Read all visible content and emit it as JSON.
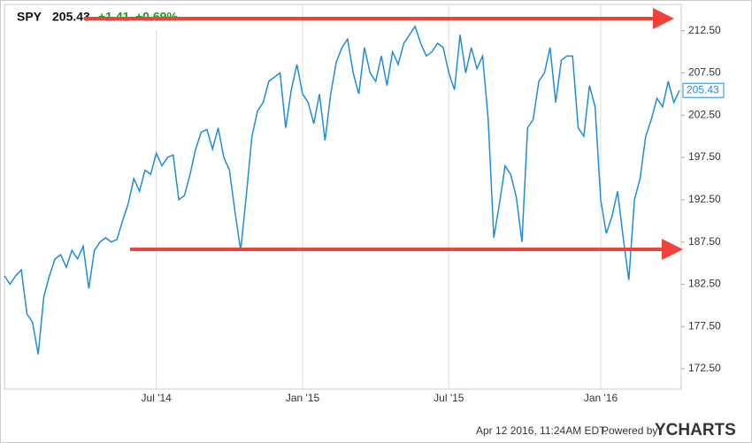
{
  "chart_data": {
    "type": "line",
    "ticker": "SPY",
    "change": "+1.41",
    "change_percent": "+0.69%",
    "timestamp": "Apr 12 2016, 11:24AM EDT.",
    "powered_by": "Powered by",
    "brand": "YCHARTS",
    "categories": [
      null,
      null,
      null,
      null,
      null,
      null,
      null,
      null,
      null,
      null,
      null,
      null,
      null,
      null,
      null,
      null,
      null,
      null,
      null,
      null,
      null,
      null,
      null,
      null,
      null,
      null,
      null,
      "Jul '14",
      null,
      null,
      null,
      null,
      null,
      null,
      null,
      null,
      null,
      null,
      null,
      null,
      null,
      null,
      null,
      null,
      null,
      null,
      null,
      null,
      null,
      null,
      null,
      null,
      null,
      "Jan '15",
      null,
      null,
      null,
      null,
      null,
      null,
      null,
      null,
      null,
      null,
      null,
      null,
      null,
      null,
      null,
      null,
      null,
      null,
      null,
      null,
      null,
      null,
      null,
      null,
      null,
      "Jul '15",
      null,
      null,
      null,
      null,
      null,
      null,
      null,
      null,
      null,
      null,
      null,
      null,
      null,
      null,
      null,
      null,
      null,
      null,
      null,
      null,
      null,
      null,
      null,
      null,
      null,
      null,
      "Jan '16",
      null,
      null,
      null,
      null,
      null,
      null,
      null,
      null,
      null,
      null,
      null,
      null,
      null,
      null
    ],
    "series": [
      {
        "name": "SPY",
        "color": "#1f8dd6",
        "values": [
          183.5,
          182.5,
          183.5,
          184.2,
          179,
          178,
          174.2,
          181,
          183.5,
          185.5,
          186,
          184.5,
          186.5,
          185.5,
          187,
          182,
          186.5,
          187.5,
          188,
          187.5,
          187.8,
          190,
          192,
          195,
          193.5,
          196,
          195.5,
          198,
          196.5,
          197.5,
          197.8,
          192.5,
          193,
          195.5,
          198.5,
          200.5,
          200.8,
          198.5,
          201,
          197.5,
          196,
          191,
          186.5,
          193,
          200,
          203,
          204,
          206.5,
          207,
          207.5,
          201,
          205.5,
          208.5,
          205,
          204,
          201.5,
          205,
          199.5,
          205,
          208.8,
          210.5,
          211.5,
          207.5,
          205,
          210.5,
          207.5,
          206.5,
          209.5,
          206,
          210,
          208.5,
          211,
          212,
          213,
          211,
          209.5,
          210,
          211,
          210.5,
          207.5,
          205.5,
          212,
          207.5,
          210.5,
          208,
          209.5,
          202,
          188,
          192,
          196.5,
          195.5,
          192.8,
          187.5,
          201,
          202,
          206.5,
          207.5,
          210.5,
          204,
          209,
          209.5,
          209.5,
          201,
          200,
          206,
          203.5,
          192.5,
          188.5,
          190.5,
          193.5,
          188,
          183,
          192.5,
          195,
          200,
          202,
          204.5,
          203.5,
          206.5,
          204,
          205.43
        ]
      }
    ],
    "ylim": [
      170.1,
      215.6
    ],
    "yticks": [
      {
        "value": 172.5,
        "label": "172.50"
      },
      {
        "value": 177.5,
        "label": "177.50"
      },
      {
        "value": 182.5,
        "label": "182.50"
      },
      {
        "value": 187.5,
        "label": "187.50"
      },
      {
        "value": 192.5,
        "label": "192.50"
      },
      {
        "value": 197.5,
        "label": "197.50"
      },
      {
        "value": 202.5,
        "label": "202.50"
      },
      {
        "value": 207.5,
        "label": "207.50"
      },
      {
        "value": 212.5,
        "label": "212.50"
      }
    ],
    "grid": true
  }
}
